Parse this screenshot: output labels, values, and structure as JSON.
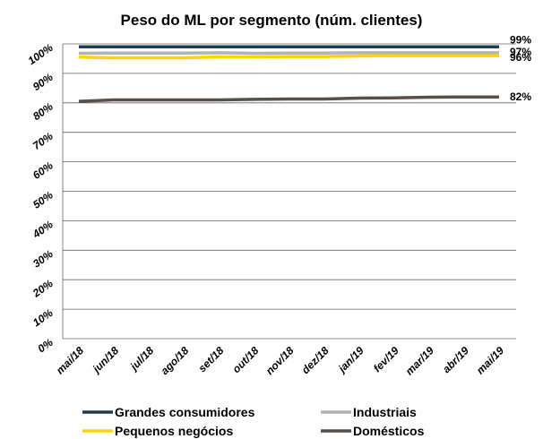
{
  "chart_data": {
    "type": "line",
    "title": "Peso do ML por segmento (núm. clientes)",
    "categories": [
      "mai/18",
      "jun/18",
      "jul/18",
      "ago/18",
      "set/18",
      "out/18",
      "nov/18",
      "dez/18",
      "jan/19",
      "fev/19",
      "mar/19",
      "abr/19",
      "mai/19"
    ],
    "series": [
      {
        "name": "Grandes consumidores",
        "color": "#1f3a56",
        "values": [
          99,
          99,
          99,
          99,
          99,
          99,
          99,
          99,
          99,
          99,
          99,
          99,
          99
        ],
        "value_labels": [
          null,
          null,
          null,
          null,
          null,
          null,
          null,
          null,
          null,
          null,
          null,
          null,
          "99%"
        ]
      },
      {
        "name": "Industriais",
        "color": "#b3b3b3",
        "values": [
          96.8,
          96.9,
          96.9,
          96.9,
          97,
          96.8,
          96.9,
          96.9,
          97,
          97,
          97,
          97,
          97
        ],
        "value_labels": [
          null,
          null,
          null,
          null,
          null,
          null,
          null,
          null,
          null,
          null,
          null,
          null,
          "97%"
        ]
      },
      {
        "name": "Pequenos negócios",
        "color": "#ffd400",
        "values": [
          95.5,
          95.3,
          95.3,
          95.3,
          95.6,
          95.6,
          95.7,
          95.7,
          95.9,
          96,
          96,
          96,
          96
        ],
        "value_labels": [
          null,
          null,
          null,
          null,
          null,
          null,
          null,
          null,
          null,
          null,
          null,
          null,
          "96%"
        ]
      },
      {
        "name": "Domésticos",
        "color": "#5b4f4a",
        "values": [
          80.5,
          81,
          81,
          81,
          81,
          81.2,
          81.3,
          81.3,
          81.6,
          81.7,
          81.9,
          82,
          82
        ],
        "value_labels": [
          null,
          null,
          null,
          null,
          null,
          null,
          null,
          null,
          null,
          null,
          null,
          null,
          "82%"
        ]
      }
    ],
    "ylim": [
      0,
      100
    ],
    "yticks": [
      {
        "value": 0,
        "label": "0%"
      },
      {
        "value": 10,
        "label": "10%"
      },
      {
        "value": 20,
        "label": "20%"
      },
      {
        "value": 30,
        "label": "30%"
      },
      {
        "value": 40,
        "label": "40%"
      },
      {
        "value": 50,
        "label": "50%"
      },
      {
        "value": 60,
        "label": "60%"
      },
      {
        "value": 70,
        "label": "70%"
      },
      {
        "value": 80,
        "label": "80%"
      },
      {
        "value": 90,
        "label": "90%"
      },
      {
        "value": 100,
        "label": "100%"
      }
    ],
    "grid": true,
    "legend": "bottom"
  }
}
